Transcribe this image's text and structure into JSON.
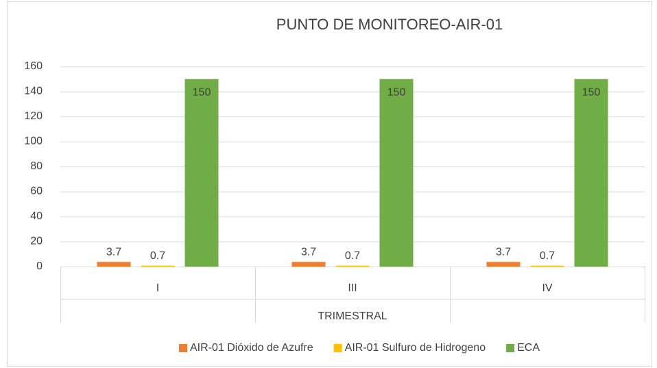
{
  "chart_data": {
    "type": "bar",
    "title": "PUNTO DE MONITOREO-AIR-01",
    "x_label": "TRIMESTRAL",
    "categories": [
      "I",
      "III",
      "IV"
    ],
    "series": [
      {
        "name": "AIR-01 Dióxido de Azufre",
        "color": "#ED7D31",
        "values": [
          3.7,
          3.7,
          3.7
        ]
      },
      {
        "name": "AIR-01 Sulfuro de Hidrogeno",
        "color": "#FFC000",
        "values": [
          0.7,
          0.7,
          0.7
        ]
      },
      {
        "name": "ECA",
        "color": "#70AD47",
        "values": [
          150,
          150,
          150
        ]
      }
    ],
    "ylim": [
      0,
      160
    ],
    "yticks": [
      0,
      20,
      40,
      60,
      80,
      100,
      120,
      140,
      160
    ],
    "grid": true,
    "legend": "bottom"
  }
}
